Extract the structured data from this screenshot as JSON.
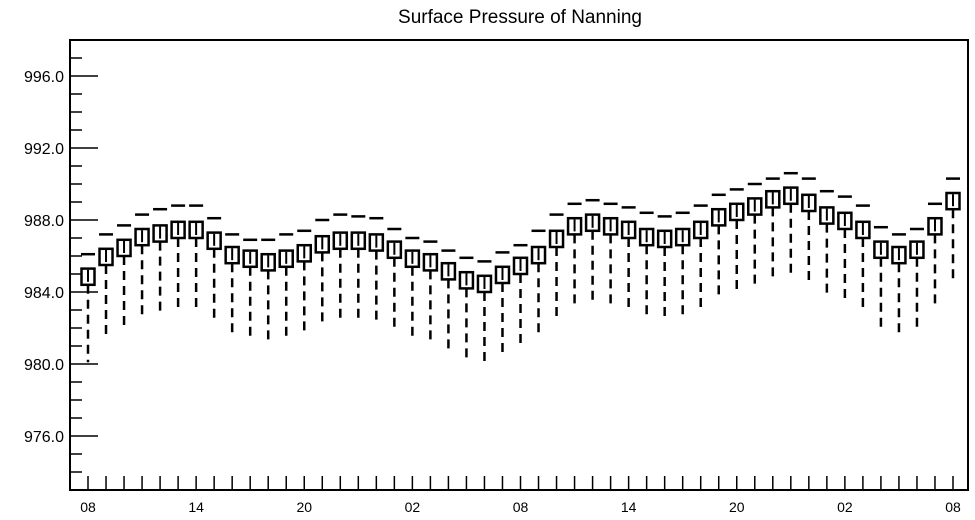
{
  "chart_data": {
    "type": "boxplot",
    "title": "Surface Pressure of Nanning",
    "xlabel": "",
    "ylabel": "",
    "ylim": [
      973.0,
      998.0
    ],
    "y_ticks": [
      976.0,
      980.0,
      984.0,
      988.0,
      992.0,
      996.0
    ],
    "y_tick_labels": [
      "976.0",
      "980.0",
      "984.0",
      "988.0",
      "992.0",
      "996.0"
    ],
    "x_tick_labels": [
      "08",
      "14",
      "20",
      "02",
      "08",
      "14",
      "20",
      "02",
      "08"
    ],
    "x_tick_every": 6,
    "grid": false,
    "legend": "none",
    "categories": [
      "08",
      "09",
      "10",
      "11",
      "12",
      "13",
      "14",
      "15",
      "16",
      "17",
      "18",
      "19",
      "20",
      "21",
      "22",
      "23",
      "00",
      "01",
      "02",
      "03",
      "04",
      "05",
      "06",
      "07",
      "08",
      "09",
      "10",
      "11",
      "12",
      "13",
      "14",
      "15",
      "16",
      "17",
      "18",
      "19",
      "20",
      "21",
      "22",
      "23",
      "00",
      "01",
      "02",
      "03",
      "04",
      "05",
      "06",
      "07",
      "08"
    ],
    "upper": [
      986.1,
      987.2,
      987.7,
      988.3,
      988.6,
      988.8,
      988.8,
      988.1,
      987.2,
      986.9,
      986.9,
      987.2,
      987.4,
      988.0,
      988.3,
      988.2,
      988.1,
      987.5,
      987.0,
      986.8,
      986.3,
      985.9,
      985.7,
      986.2,
      986.6,
      987.4,
      988.3,
      988.9,
      989.1,
      988.9,
      988.7,
      988.4,
      988.2,
      988.4,
      988.8,
      989.4,
      989.7,
      990.0,
      990.3,
      990.6,
      990.3,
      989.6,
      989.3,
      988.8,
      987.6,
      987.2,
      987.5,
      988.9,
      990.3
    ],
    "q3": [
      985.3,
      986.4,
      986.9,
      987.5,
      987.7,
      987.9,
      987.9,
      987.3,
      986.5,
      986.3,
      986.1,
      986.3,
      986.6,
      987.1,
      987.3,
      987.3,
      987.2,
      986.8,
      986.3,
      986.1,
      985.6,
      985.1,
      984.9,
      985.4,
      985.9,
      986.5,
      987.4,
      988.1,
      988.3,
      988.1,
      987.9,
      987.5,
      987.4,
      987.5,
      987.9,
      988.6,
      988.9,
      989.2,
      989.6,
      989.8,
      989.4,
      988.7,
      988.4,
      987.9,
      986.8,
      986.5,
      986.8,
      988.1,
      989.5
    ],
    "median": [
      984.9,
      986.0,
      986.5,
      987.1,
      987.3,
      987.5,
      987.5,
      986.9,
      986.1,
      985.9,
      985.7,
      985.9,
      986.2,
      986.7,
      986.9,
      986.9,
      986.8,
      986.4,
      985.9,
      985.7,
      985.2,
      984.7,
      984.5,
      985.0,
      985.5,
      986.1,
      987.0,
      987.7,
      987.9,
      987.7,
      987.5,
      987.1,
      987.0,
      987.1,
      987.5,
      988.2,
      988.5,
      988.8,
      989.2,
      989.4,
      989.0,
      988.3,
      988.0,
      987.5,
      986.4,
      986.1,
      986.4,
      987.7,
      989.1
    ],
    "q1": [
      984.4,
      985.5,
      986.0,
      986.6,
      986.8,
      987.0,
      987.0,
      986.4,
      985.6,
      985.4,
      985.2,
      985.4,
      985.7,
      986.2,
      986.4,
      986.4,
      986.3,
      985.9,
      985.4,
      985.2,
      984.7,
      984.2,
      984.0,
      984.5,
      985.0,
      985.6,
      986.5,
      987.2,
      987.4,
      987.2,
      987.0,
      986.6,
      986.5,
      986.6,
      987.0,
      987.7,
      988.0,
      988.3,
      988.7,
      988.9,
      988.5,
      987.8,
      987.5,
      987.0,
      985.9,
      985.6,
      985.9,
      987.2,
      988.6
    ],
    "lower": [
      980.1,
      981.5,
      982.0,
      982.5,
      982.8,
      983.0,
      983.0,
      982.4,
      981.6,
      981.4,
      981.2,
      981.4,
      981.7,
      982.2,
      982.4,
      982.4,
      982.3,
      981.9,
      981.4,
      981.2,
      980.7,
      980.2,
      980.0,
      980.5,
      981.0,
      981.6,
      982.5,
      983.2,
      983.4,
      983.2,
      983.0,
      982.6,
      982.5,
      982.6,
      983.0,
      983.7,
      984.0,
      984.3,
      984.7,
      984.9,
      984.5,
      983.8,
      983.5,
      983.0,
      981.9,
      981.6,
      981.9,
      983.2,
      984.6
    ]
  }
}
